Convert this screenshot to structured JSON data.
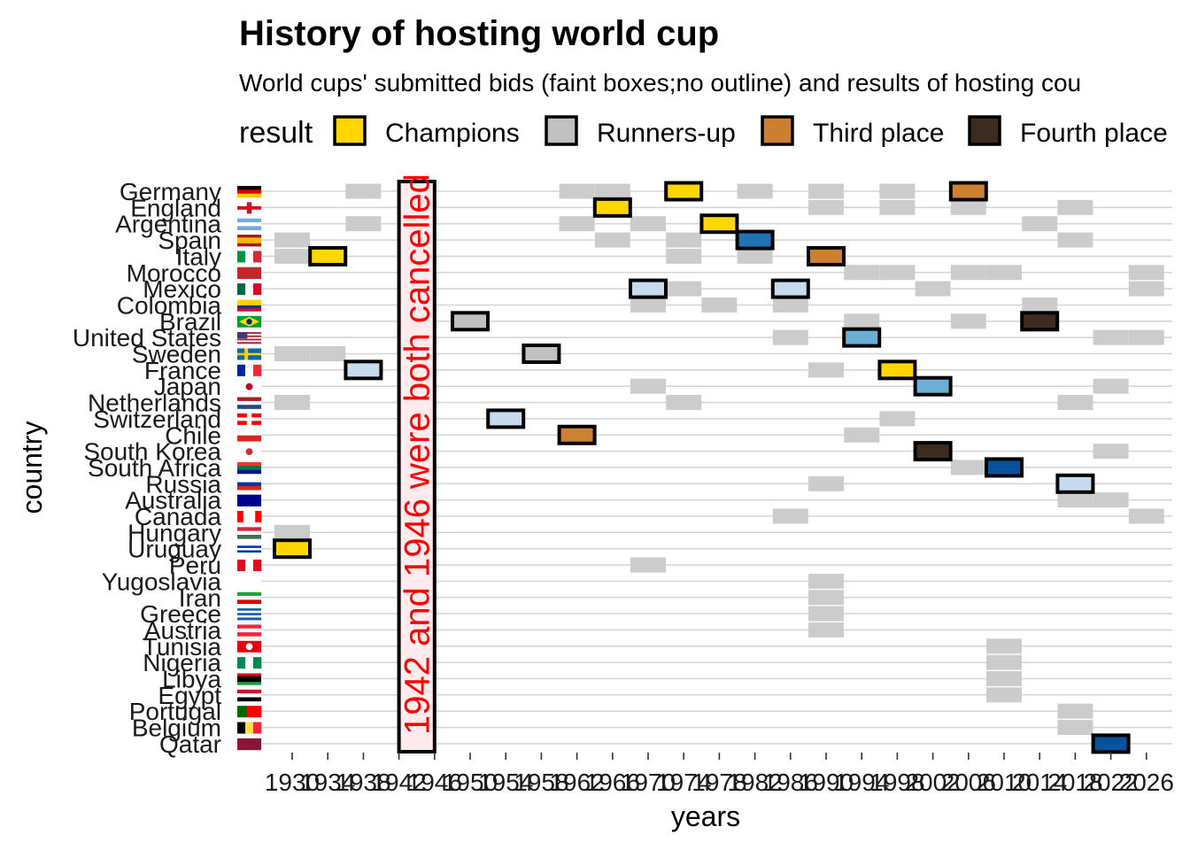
{
  "chart_data": {
    "type": "heatmap",
    "title": "History of hosting world cup",
    "subtitle": "World cups' submitted bids (faint boxes;no outline) and results of hosting cou",
    "legend": {
      "title": "result",
      "position": "top",
      "items": [
        {
          "label": "Champions",
          "color": "#FFD700"
        },
        {
          "label": "Runners-up",
          "color": "#C0C0C0"
        },
        {
          "label": "Third place",
          "color": "#CD7F32"
        },
        {
          "label": "Fourth place",
          "color": "#3D2B1F"
        }
      ]
    },
    "xlabel": "years",
    "ylabel": "country",
    "x_ticks": [
      1930,
      1934,
      1938,
      1942,
      1946,
      1950,
      1954,
      1958,
      1962,
      1966,
      1970,
      1974,
      1978,
      1982,
      1986,
      1990,
      1994,
      1998,
      2002,
      2006,
      2010,
      2014,
      2018,
      2022,
      2026
    ],
    "x_tick_labels": [
      "1930",
      "1934",
      "1938",
      "1942",
      "1946",
      "1950",
      "1954",
      "1958",
      "1962",
      "1966",
      "1970",
      "1974",
      "1978",
      "1982",
      "1986",
      "1990",
      "1994",
      "1998",
      "2002",
      "2006",
      "2010",
      "2014",
      "2018",
      "2022",
      "2026"
    ],
    "countries": [
      "Germany",
      "England",
      "Argentina",
      "Spain",
      "Italy",
      "Morocco",
      "Mexico",
      "Colombia",
      "Brazil",
      "United States",
      "Sweden",
      "France",
      "Japan",
      "Netherlands",
      "Switzerland",
      "Chile",
      "South Korea",
      "South Africa",
      "Russia",
      "Australia",
      "Canada",
      "Hungary",
      "Uruguay",
      "Peru",
      "Yugoslavia",
      "Iran",
      "Greece",
      "Austria",
      "Tunisia",
      "Nigeria",
      "Libya",
      "Egypt",
      "Portugal",
      "Belgium",
      "Qatar"
    ],
    "cancelled": {
      "years": [
        1942,
        1946
      ],
      "note": "1942 and 1946 were both cancelled",
      "fill": "#FFEBEE",
      "text_color": "#FF0000"
    },
    "host_colors": {
      "Champions": "#FFD700",
      "Runners-up": "#C0C0C0",
      "Third place": "#CD7F32",
      "Fourth place": "#3D2B1F",
      "Quarter-finals": "#C6DBEF",
      "Round of 16": "#6BAED6",
      "Second round": "#2171B5",
      "Group stage": "#08519C"
    },
    "bid_color": "#CCCCCC",
    "hosts": [
      {
        "country": "Uruguay",
        "year": 1930,
        "result": "Champions"
      },
      {
        "country": "Italy",
        "year": 1934,
        "result": "Champions"
      },
      {
        "country": "France",
        "year": 1938,
        "result": "Quarter-finals"
      },
      {
        "country": "Brazil",
        "year": 1950,
        "result": "Runners-up"
      },
      {
        "country": "Switzerland",
        "year": 1954,
        "result": "Quarter-finals"
      },
      {
        "country": "Sweden",
        "year": 1958,
        "result": "Runners-up"
      },
      {
        "country": "Chile",
        "year": 1962,
        "result": "Third place"
      },
      {
        "country": "England",
        "year": 1966,
        "result": "Champions"
      },
      {
        "country": "Mexico",
        "year": 1970,
        "result": "Quarter-finals"
      },
      {
        "country": "Germany",
        "year": 1974,
        "result": "Champions"
      },
      {
        "country": "Argentina",
        "year": 1978,
        "result": "Champions"
      },
      {
        "country": "Spain",
        "year": 1982,
        "result": "Second round"
      },
      {
        "country": "Mexico",
        "year": 1986,
        "result": "Quarter-finals"
      },
      {
        "country": "Italy",
        "year": 1990,
        "result": "Third place"
      },
      {
        "country": "United States",
        "year": 1994,
        "result": "Round of 16"
      },
      {
        "country": "France",
        "year": 1998,
        "result": "Champions"
      },
      {
        "country": "South Korea",
        "year": 2002,
        "result": "Fourth place"
      },
      {
        "country": "Japan",
        "year": 2002,
        "result": "Round of 16"
      },
      {
        "country": "Germany",
        "year": 2006,
        "result": "Third place"
      },
      {
        "country": "South Africa",
        "year": 2010,
        "result": "Group stage"
      },
      {
        "country": "Brazil",
        "year": 2014,
        "result": "Fourth place"
      },
      {
        "country": "Russia",
        "year": 2018,
        "result": "Quarter-finals"
      },
      {
        "country": "Qatar",
        "year": 2022,
        "result": "Group stage"
      }
    ],
    "bids": [
      {
        "country": "Germany",
        "years": [
          1938,
          1962,
          1966,
          1982,
          1990,
          1998,
          2006
        ]
      },
      {
        "country": "England",
        "years": [
          1990,
          1998,
          2006,
          2018
        ]
      },
      {
        "country": "Argentina",
        "years": [
          1938,
          1962,
          1970,
          2014
        ]
      },
      {
        "country": "Spain",
        "years": [
          1930,
          1966,
          1974,
          2018
        ]
      },
      {
        "country": "Italy",
        "years": [
          1930,
          1974,
          1982
        ]
      },
      {
        "country": "Morocco",
        "years": [
          1994,
          1998,
          2006,
          2010,
          2026
        ]
      },
      {
        "country": "Mexico",
        "years": [
          1974,
          2002,
          2026
        ]
      },
      {
        "country": "Colombia",
        "years": [
          1970,
          1978,
          1986,
          2014
        ]
      },
      {
        "country": "Brazil",
        "years": [
          1994,
          2006
        ]
      },
      {
        "country": "United States",
        "years": [
          1986,
          2022,
          2026
        ]
      },
      {
        "country": "Sweden",
        "years": [
          1930,
          1934
        ]
      },
      {
        "country": "France",
        "years": [
          1990
        ]
      },
      {
        "country": "Japan",
        "years": [
          1970,
          2022
        ]
      },
      {
        "country": "Netherlands",
        "years": [
          1930,
          1974,
          2018
        ]
      },
      {
        "country": "Switzerland",
        "years": [
          1998
        ]
      },
      {
        "country": "Chile",
        "years": [
          1994
        ]
      },
      {
        "country": "South Korea",
        "years": [
          2022
        ]
      },
      {
        "country": "South Africa",
        "years": [
          2006
        ]
      },
      {
        "country": "Russia",
        "years": [
          1990
        ]
      },
      {
        "country": "Australia",
        "years": [
          2018,
          2022
        ]
      },
      {
        "country": "Canada",
        "years": [
          1986,
          2026
        ]
      },
      {
        "country": "Hungary",
        "years": [
          1930
        ]
      },
      {
        "country": "Peru",
        "years": [
          1970
        ]
      },
      {
        "country": "Yugoslavia",
        "years": [
          1990
        ]
      },
      {
        "country": "Iran",
        "years": [
          1990
        ]
      },
      {
        "country": "Greece",
        "years": [
          1990
        ]
      },
      {
        "country": "Austria",
        "years": [
          1990
        ]
      },
      {
        "country": "Tunisia",
        "years": [
          2010
        ]
      },
      {
        "country": "Nigeria",
        "years": [
          2010
        ]
      },
      {
        "country": "Libya",
        "years": [
          2010
        ]
      },
      {
        "country": "Egypt",
        "years": [
          2010
        ]
      },
      {
        "country": "Portugal",
        "years": [
          2018
        ]
      },
      {
        "country": "Belgium",
        "years": [
          2018
        ]
      }
    ]
  },
  "flags": {
    "Germany": {
      "type": "h",
      "colors": [
        "#000000",
        "#DD0000",
        "#FFCE00"
      ]
    },
    "England": {
      "type": "cross",
      "colors": [
        "#FFFFFF",
        "#CE1124"
      ]
    },
    "Argentina": {
      "type": "h",
      "colors": [
        "#74ACDF",
        "#FFFFFF",
        "#74ACDF"
      ]
    },
    "Spain": {
      "type": "h",
      "weights": [
        1,
        2,
        1
      ],
      "colors": [
        "#AA151B",
        "#F1BF00",
        "#AA151B"
      ]
    },
    "Italy": {
      "type": "v",
      "colors": [
        "#009246",
        "#FFFFFF",
        "#CE2B37"
      ]
    },
    "Morocco": {
      "type": "h",
      "colors": [
        "#C1272D"
      ]
    },
    "Mexico": {
      "type": "v",
      "colors": [
        "#006847",
        "#FFFFFF",
        "#CE1126"
      ]
    },
    "Colombia": {
      "type": "h",
      "weights": [
        2,
        1,
        1
      ],
      "colors": [
        "#FCD116",
        "#003893",
        "#CE1126"
      ]
    },
    "Brazil": {
      "type": "brazil",
      "colors": [
        "#009C3B",
        "#FFDF00",
        "#002776"
      ]
    },
    "United States": {
      "type": "usa",
      "colors": [
        "#B22234",
        "#FFFFFF",
        "#3C3B6E"
      ]
    },
    "Sweden": {
      "type": "nordic",
      "colors": [
        "#006AA7",
        "#FECC00"
      ]
    },
    "France": {
      "type": "v",
      "colors": [
        "#002395",
        "#FFFFFF",
        "#ED2939"
      ]
    },
    "Japan": {
      "type": "disc",
      "colors": [
        "#FFFFFF",
        "#BC002D"
      ]
    },
    "Netherlands": {
      "type": "h",
      "colors": [
        "#AE1C28",
        "#FFFFFF",
        "#21468B"
      ]
    },
    "Switzerland": {
      "type": "cross",
      "colors": [
        "#FF0000",
        "#FFFFFF"
      ]
    },
    "Chile": {
      "type": "h",
      "colors": [
        "#FFFFFF",
        "#D52B1E"
      ]
    },
    "South Korea": {
      "type": "disc",
      "colors": [
        "#FFFFFF",
        "#CD2E3A"
      ]
    },
    "South Africa": {
      "type": "h",
      "colors": [
        "#E03C31",
        "#007749",
        "#001489"
      ]
    },
    "Russia": {
      "type": "h",
      "colors": [
        "#FFFFFF",
        "#0039A6",
        "#D52B1E"
      ]
    },
    "Australia": {
      "type": "h",
      "colors": [
        "#00008B"
      ]
    },
    "Canada": {
      "type": "v",
      "weights": [
        1,
        2,
        1
      ],
      "colors": [
        "#FF0000",
        "#FFFFFF",
        "#FF0000"
      ]
    },
    "Hungary": {
      "type": "h",
      "colors": [
        "#CD2A3E",
        "#FFFFFF",
        "#436F4D"
      ]
    },
    "Uruguay": {
      "type": "h",
      "colors": [
        "#FFFFFF",
        "#0038A8",
        "#FFFFFF",
        "#0038A8",
        "#FFFFFF"
      ]
    },
    "Peru": {
      "type": "v",
      "colors": [
        "#D91023",
        "#FFFFFF",
        "#D91023"
      ]
    },
    "Yugoslavia": {
      "type": "h",
      "colors": [
        "#FFFFFF"
      ]
    },
    "Iran": {
      "type": "h",
      "colors": [
        "#239F40",
        "#FFFFFF",
        "#DA0000"
      ]
    },
    "Greece": {
      "type": "h",
      "colors": [
        "#0D5EAF",
        "#FFFFFF",
        "#0D5EAF",
        "#FFFFFF",
        "#0D5EAF"
      ]
    },
    "Austria": {
      "type": "h",
      "colors": [
        "#ED2939",
        "#FFFFFF",
        "#ED2939"
      ]
    },
    "Tunisia": {
      "type": "disc",
      "colors": [
        "#E70013",
        "#FFFFFF"
      ]
    },
    "Nigeria": {
      "type": "v",
      "colors": [
        "#008751",
        "#FFFFFF",
        "#008751"
      ]
    },
    "Libya": {
      "type": "h",
      "weights": [
        1,
        2,
        1
      ],
      "colors": [
        "#E70013",
        "#000000",
        "#239E46"
      ]
    },
    "Egypt": {
      "type": "h",
      "colors": [
        "#CE1126",
        "#FFFFFF",
        "#000000"
      ]
    },
    "Portugal": {
      "type": "v",
      "weights": [
        2,
        3
      ],
      "colors": [
        "#006600",
        "#FF0000"
      ]
    },
    "Belgium": {
      "type": "v",
      "colors": [
        "#000000",
        "#FAE042",
        "#ED2939"
      ]
    },
    "Qatar": {
      "type": "h",
      "colors": [
        "#8A1538"
      ]
    }
  }
}
